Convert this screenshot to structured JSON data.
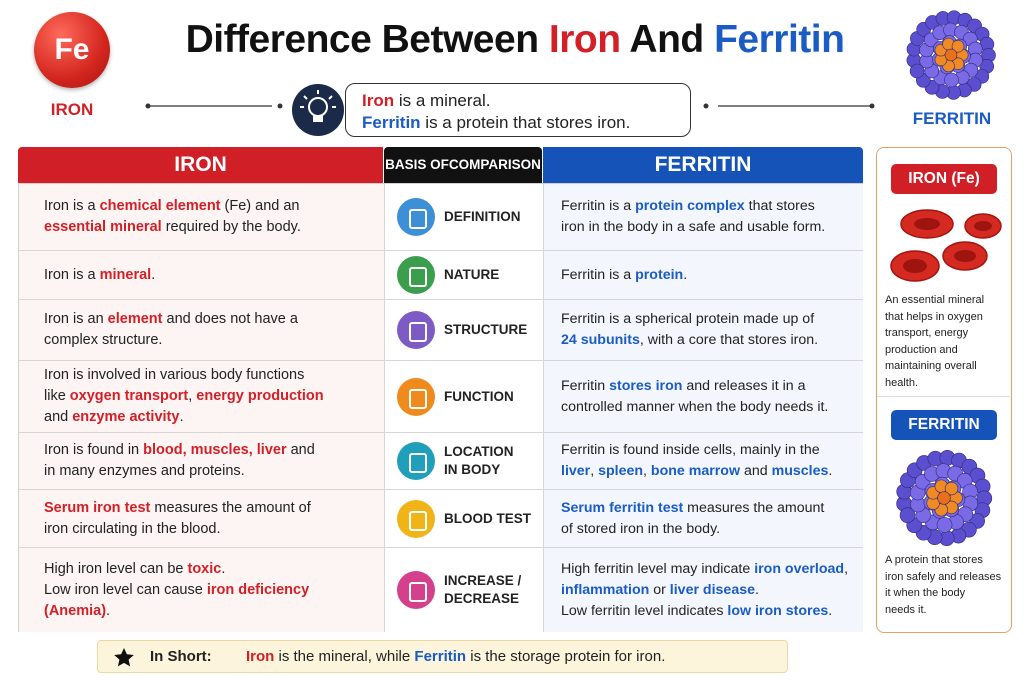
{
  "header": {
    "badge": "Fe",
    "badge_label": "IRON",
    "title": [
      [
        {
          "text": "Difference Between "
        },
        {
          "text": "Iron",
          "color": "#d32027"
        },
        {
          "text": " And "
        },
        {
          "text": "Ferritin",
          "color": "#1a5bc4"
        }
      ]
    ],
    "molecule_label": "FERRITIN",
    "callout": [
      [
        {
          "text": "Iron",
          "color": "#d32027"
        },
        {
          "text": " is a mineral."
        }
      ],
      [
        {
          "text": "Ferritin",
          "color": "#1a5bc4"
        },
        {
          "text": " is a protein that stores iron."
        }
      ]
    ]
  },
  "table": {
    "headers": [
      "IRON",
      [
        "BASIS OF",
        "COMPARISON"
      ],
      "FERRITIN"
    ],
    "rows": [
      {
        "iron": [
          [
            {
              "text": "Iron is a "
            },
            {
              "text": "chemical element",
              "color": "#d32027"
            },
            {
              "text": " (Fe) and an"
            }
          ],
          [
            {
              "text": "essential mineral",
              "color": "#d32027"
            },
            {
              "text": " required by the body."
            }
          ]
        ],
        "basis": [
          "DEFINITION"
        ],
        "ferritin": [
          [
            {
              "text": "Ferritin is a "
            },
            {
              "text": "protein complex",
              "color": "#1a5bc4"
            },
            {
              "text": " that stores"
            }
          ],
          [
            {
              "text": "iron in the body in a safe and usable form."
            }
          ]
        ]
      },
      {
        "iron": [
          [
            {
              "text": "Iron is a "
            },
            {
              "text": "mineral",
              "color": "#d32027"
            },
            {
              "text": "."
            }
          ]
        ],
        "basis": [
          "NATURE"
        ],
        "ferritin": [
          [
            {
              "text": "Ferritin is a "
            },
            {
              "text": "protein",
              "color": "#1a5bc4"
            },
            {
              "text": "."
            }
          ]
        ]
      },
      {
        "iron": [
          [
            {
              "text": "Iron is an "
            },
            {
              "text": "element",
              "color": "#d32027"
            },
            {
              "text": " and does not have a"
            }
          ],
          [
            {
              "text": "complex structure."
            }
          ]
        ],
        "basis": [
          "STRUCTURE"
        ],
        "ferritin": [
          [
            {
              "text": "Ferritin is a spherical protein made up of"
            }
          ],
          [
            {
              "text": "24 subunits",
              "color": "#1a5bc4"
            },
            {
              "text": ", with a core that stores iron."
            }
          ]
        ]
      },
      {
        "iron": [
          [
            {
              "text": "Iron is involved in various body functions"
            }
          ],
          [
            {
              "text": "like "
            },
            {
              "text": "oxygen transport",
              "color": "#d32027"
            },
            {
              "text": ", "
            },
            {
              "text": "energy production",
              "color": "#d32027"
            }
          ],
          [
            {
              "text": "and "
            },
            {
              "text": "enzyme activity",
              "color": "#d32027"
            },
            {
              "text": "."
            }
          ]
        ],
        "basis": [
          "FUNCTION"
        ],
        "ferritin": [
          [
            {
              "text": "Ferritin "
            },
            {
              "text": "stores iron",
              "color": "#1a5bc4"
            },
            {
              "text": " and releases it in a"
            }
          ],
          [
            {
              "text": "controlled manner when the body needs it."
            }
          ]
        ]
      },
      {
        "iron": [
          [
            {
              "text": "Iron is found in "
            },
            {
              "text": "blood, muscles, liver",
              "color": "#d32027"
            },
            {
              "text": " and"
            }
          ],
          [
            {
              "text": "in many enzymes and proteins."
            }
          ]
        ],
        "basis": [
          "LOCATION",
          "IN BODY"
        ],
        "ferritin": [
          [
            {
              "text": "Ferritin is found inside cells, mainly in the"
            }
          ],
          [
            {
              "text": "liver",
              "color": "#1a5bc4"
            },
            {
              "text": ", "
            },
            {
              "text": "spleen",
              "color": "#1a5bc4"
            },
            {
              "text": ", "
            },
            {
              "text": "bone marrow",
              "color": "#1a5bc4"
            },
            {
              "text": " and "
            },
            {
              "text": "muscles",
              "color": "#1a5bc4"
            },
            {
              "text": "."
            }
          ]
        ]
      },
      {
        "iron": [
          [
            {
              "text": "Serum iron test",
              "color": "#d32027"
            },
            {
              "text": " measures the amount of"
            }
          ],
          [
            {
              "text": "iron circulating in the blood."
            }
          ]
        ],
        "basis": [
          "BLOOD TEST"
        ],
        "ferritin": [
          [
            {
              "text": "Serum ferritin test",
              "color": "#1a5bc4"
            },
            {
              "text": " measures the amount"
            }
          ],
          [
            {
              "text": "of stored iron in the body."
            }
          ]
        ]
      },
      {
        "iron": [
          [
            {
              "text": "High iron level can be "
            },
            {
              "text": "toxic",
              "color": "#d32027"
            },
            {
              "text": "."
            }
          ],
          [
            {
              "text": "Low iron level can cause "
            },
            {
              "text": "iron deficiency",
              "color": "#d32027"
            }
          ],
          [
            {
              "text": "(Anemia)",
              "color": "#d32027"
            },
            {
              "text": "."
            }
          ]
        ],
        "basis": [
          "INCREASE /",
          "DECREASE"
        ],
        "ferritin": [
          [
            {
              "text": "High ferritin level may indicate "
            },
            {
              "text": "iron overload",
              "color": "#1a5bc4"
            },
            {
              "text": ","
            }
          ],
          [
            {
              "text": "inflammation",
              "color": "#1a5bc4"
            },
            {
              "text": " or "
            },
            {
              "text": "liver disease",
              "color": "#1a5bc4"
            },
            {
              "text": "."
            }
          ],
          [
            {
              "text": "Low ferritin level indicates "
            },
            {
              "text": "low iron stores",
              "color": "#1a5bc4"
            },
            {
              "text": "."
            }
          ]
        ]
      }
    ]
  },
  "sidebar": {
    "iron_label": "IRON (Fe)",
    "iron_text": [
      [
        {
          "text": "An essential mineral"
        }
      ],
      [
        {
          "text": "that helps in oxygen"
        }
      ],
      [
        {
          "text": "transport, energy"
        }
      ],
      [
        {
          "text": "production and"
        }
      ],
      [
        {
          "text": "maintaining overall"
        }
      ],
      [
        {
          "text": "health."
        }
      ]
    ],
    "ferritin_label": "FERRITIN",
    "ferritin_text": [
      [
        {
          "text": "A protein that stores"
        }
      ],
      [
        {
          "text": "iron safely and releases"
        }
      ],
      [
        {
          "text": "it when the body"
        }
      ],
      [
        {
          "text": "needs it."
        }
      ]
    ]
  },
  "summary": {
    "label": "In Short:",
    "text": [
      [
        {
          "text": "Iron",
          "color": "#d32027"
        },
        {
          "text": " is the mineral, while "
        },
        {
          "text": "Ferritin",
          "color": "#1a5bc4"
        },
        {
          "text": " is the storage protein for iron."
        }
      ]
    ]
  }
}
